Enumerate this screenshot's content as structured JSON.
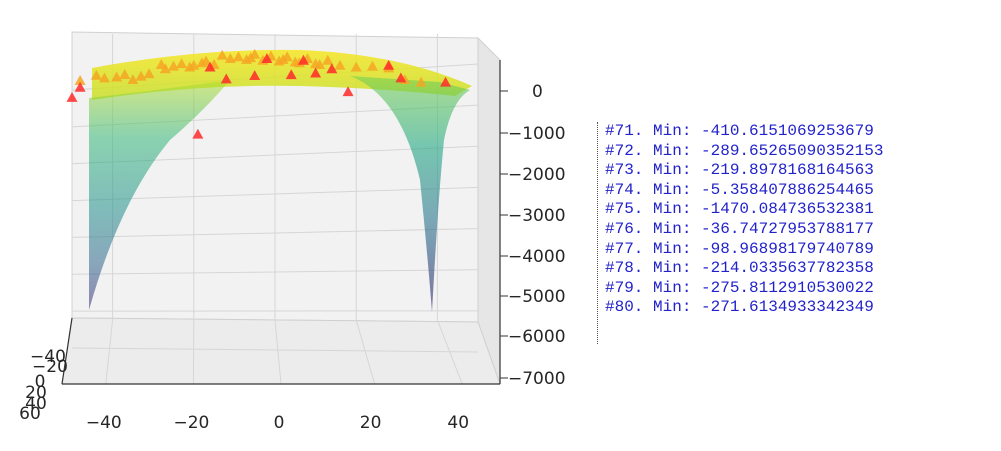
{
  "chart_data": {
    "type": "surface3d",
    "title": "",
    "x_ticks": [
      "−40",
      "−20",
      "0",
      "20",
      "40"
    ],
    "z_ticks": [
      "0",
      "−1000",
      "−2000",
      "−3000",
      "−4000",
      "−5000",
      "−6000",
      "−7000"
    ],
    "y_ticks": [
      "−40",
      "−20",
      "0",
      "20",
      "40",
      "60"
    ],
    "xlim": [
      -50,
      50
    ],
    "zlim": [
      -7000,
      500
    ],
    "ylim": [
      -50,
      60
    ],
    "surface": {
      "colormap": "viridis",
      "left_well": {
        "x": -50,
        "min_z": -5300
      },
      "right_well": {
        "x": 35,
        "min_z": -5200
      },
      "plateau_z": 0,
      "colors": {
        "high": "#f6e620",
        "mid_high": "#7ad151",
        "mid": "#22a884",
        "mid_low": "#2a788e",
        "low": "#414487",
        "lowest": "#440154"
      }
    },
    "samples_orange": [
      [
        -48,
        -100
      ],
      [
        -44,
        -40
      ],
      [
        -39,
        -60
      ],
      [
        -37,
        -30
      ],
      [
        -33,
        -50
      ],
      [
        -31,
        -20
      ],
      [
        -28,
        -30
      ],
      [
        -25,
        -50
      ],
      [
        -23,
        -20
      ],
      [
        -20,
        -40
      ],
      [
        -18,
        -10
      ],
      [
        -15,
        -30
      ],
      [
        -13,
        80
      ],
      [
        -11,
        40
      ],
      [
        -9,
        60
      ],
      [
        -7,
        30
      ],
      [
        -5,
        90
      ],
      [
        -3,
        20
      ],
      [
        -1,
        70
      ],
      [
        1,
        10
      ],
      [
        3,
        60
      ],
      [
        5,
        0
      ],
      [
        8,
        40
      ],
      [
        10,
        -20
      ],
      [
        13,
        20
      ],
      [
        16,
        -40
      ],
      [
        20,
        -60
      ],
      [
        24,
        -50
      ],
      [
        28,
        -70
      ],
      [
        32,
        -90
      ],
      [
        36,
        -120
      ],
      [
        -42,
        -70
      ],
      [
        -35,
        -90
      ],
      [
        -27,
        -80
      ],
      [
        -21,
        -60
      ],
      [
        -17,
        10
      ],
      [
        -6,
        50
      ],
      [
        2,
        30
      ],
      [
        6,
        -10
      ],
      [
        11,
        -30
      ]
    ],
    "samples_red": [
      [
        -50,
        -300
      ],
      [
        -48,
        -180
      ],
      [
        -19,
        -850
      ],
      [
        -12,
        -200
      ],
      [
        -5,
        -160
      ],
      [
        4,
        -150
      ],
      [
        10,
        -130
      ],
      [
        18,
        -350
      ],
      [
        14,
        -80
      ],
      [
        28,
        -40
      ],
      [
        31,
        -70
      ],
      [
        42,
        -120
      ],
      [
        -16,
        -60
      ],
      [
        -2,
        40
      ],
      [
        7,
        20
      ]
    ],
    "colors": {
      "orange_marker": "#f5a623",
      "red_marker": "#ff2a2a",
      "pane_line": "#c8c8c8",
      "log_text": "#2222cc"
    }
  },
  "log": [
    "#71. Min: -410.6151069253679",
    "#72. Min: -289.65265090352153",
    "#73. Min: -219.8978168164563",
    "#74. Min: -5.358407886254465",
    "#75. Min: -1470.084736532381",
    "#76. Min: -36.74727953788177",
    "#77. Min: -98.96898179740789",
    "#78. Min: -214.0335637782358",
    "#79. Min: -275.8112910530022",
    "#80. Min: -271.6134933342349"
  ]
}
